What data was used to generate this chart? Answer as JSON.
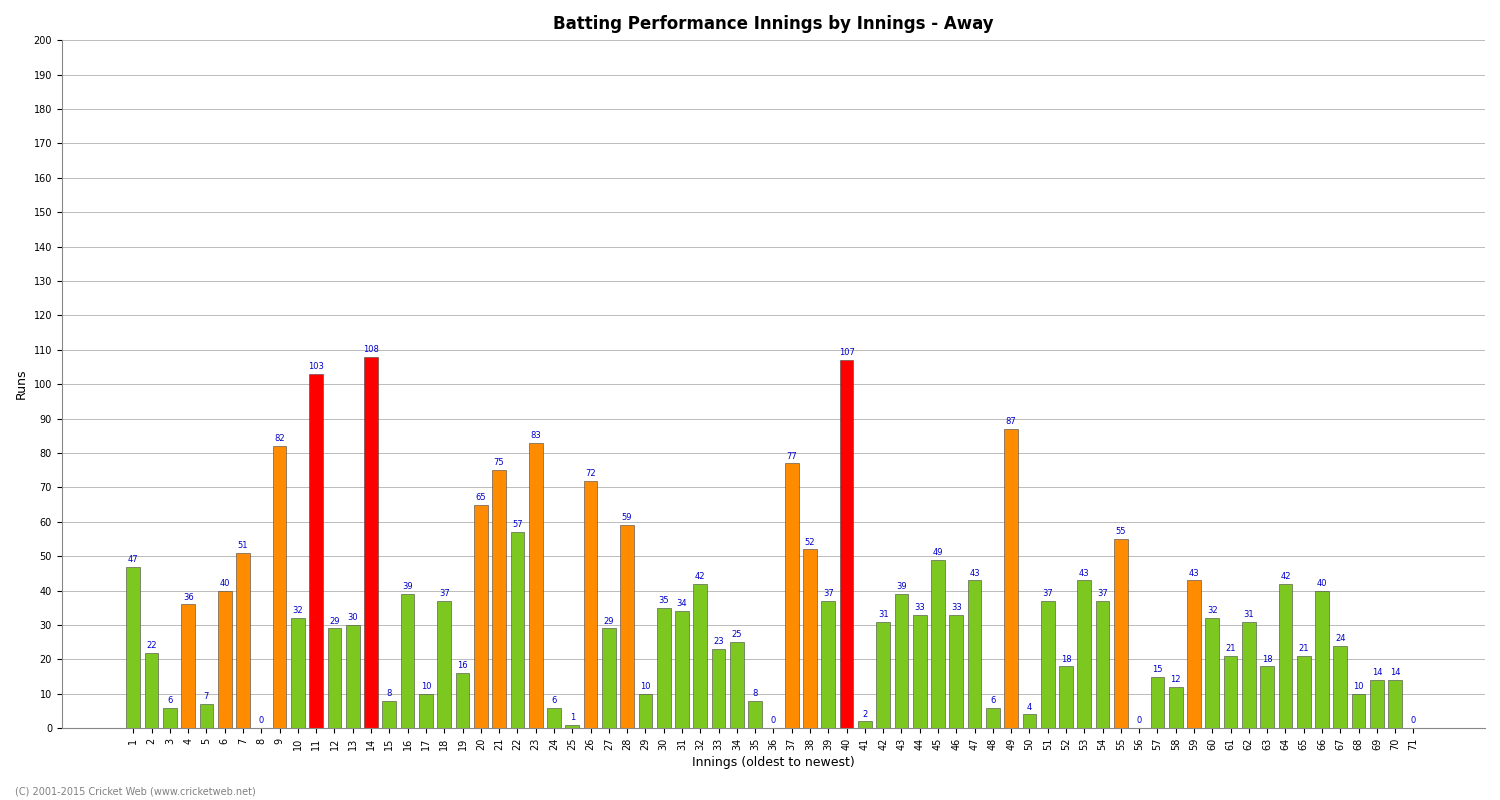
{
  "title": "Batting Performance Innings by Innings - Away",
  "xlabel": "Innings (oldest to newest)",
  "ylabel": "Runs",
  "footer": "(C) 2001-2015 Cricket Web (www.cricketweb.net)",
  "ylim": [
    0,
    200
  ],
  "yticks": [
    0,
    10,
    20,
    30,
    40,
    50,
    60,
    70,
    80,
    90,
    100,
    110,
    120,
    130,
    140,
    150,
    160,
    170,
    180,
    190,
    200
  ],
  "innings": [
    1,
    2,
    3,
    4,
    5,
    6,
    7,
    8,
    9,
    10,
    11,
    12,
    13,
    14,
    15,
    16,
    17,
    18,
    19,
    20,
    21,
    22,
    23,
    24,
    25,
    26,
    27,
    28,
    29,
    30,
    31,
    32,
    33,
    34,
    35,
    36,
    37,
    38,
    39,
    40,
    41,
    42,
    43,
    44,
    45,
    46,
    47,
    48,
    49,
    50,
    51,
    52,
    53,
    54,
    55,
    56,
    57,
    58,
    59,
    60,
    61,
    62,
    63,
    64,
    65,
    66,
    67,
    68,
    69,
    70,
    71
  ],
  "values": [
    47,
    22,
    6,
    36,
    7,
    40,
    51,
    0,
    82,
    32,
    103,
    29,
    30,
    108,
    8,
    39,
    10,
    37,
    16,
    65,
    75,
    57,
    83,
    6,
    1,
    72,
    29,
    59,
    10,
    35,
    34,
    42,
    23,
    25,
    8,
    0,
    77,
    52,
    37,
    107,
    2,
    31,
    39,
    33,
    49,
    33,
    43,
    6,
    87,
    4,
    37,
    18,
    43,
    37,
    55,
    0,
    15,
    12,
    43,
    32,
    21,
    31,
    18,
    42,
    21,
    40,
    24,
    10,
    14,
    14,
    0
  ],
  "colors": [
    "#7dc820",
    "#7dc820",
    "#7dc820",
    "#ff8c00",
    "#7dc820",
    "#ff8c00",
    "#ff8c00",
    "#7dc820",
    "#ff8c00",
    "#7dc820",
    "#ff0000",
    "#7dc820",
    "#7dc820",
    "#ff0000",
    "#7dc820",
    "#7dc820",
    "#7dc820",
    "#7dc820",
    "#7dc820",
    "#ff8c00",
    "#ff8c00",
    "#7dc820",
    "#ff8c00",
    "#7dc820",
    "#7dc820",
    "#ff8c00",
    "#7dc820",
    "#ff8c00",
    "#7dc820",
    "#7dc820",
    "#7dc820",
    "#7dc820",
    "#7dc820",
    "#7dc820",
    "#7dc820",
    "#7dc820",
    "#ff8c00",
    "#ff8c00",
    "#7dc820",
    "#ff0000",
    "#7dc820",
    "#7dc820",
    "#7dc820",
    "#7dc820",
    "#7dc820",
    "#7dc820",
    "#7dc820",
    "#7dc820",
    "#ff8c00",
    "#7dc820",
    "#7dc820",
    "#7dc820",
    "#7dc820",
    "#7dc820",
    "#ff8c00",
    "#7dc820",
    "#7dc820",
    "#7dc820",
    "#ff8c00",
    "#7dc820",
    "#7dc820",
    "#7dc820",
    "#7dc820",
    "#7dc820",
    "#7dc820",
    "#7dc820",
    "#7dc820",
    "#7dc820",
    "#7dc820",
    "#7dc820",
    "#7dc820"
  ],
  "bg_color": "#ffffff",
  "grid_color": "#bbbbbb",
  "bar_edge_color": "#444444",
  "label_color": "#0000cc",
  "label_fontsize": 6.0,
  "title_fontsize": 12,
  "axis_label_fontsize": 9,
  "tick_fontsize": 7
}
